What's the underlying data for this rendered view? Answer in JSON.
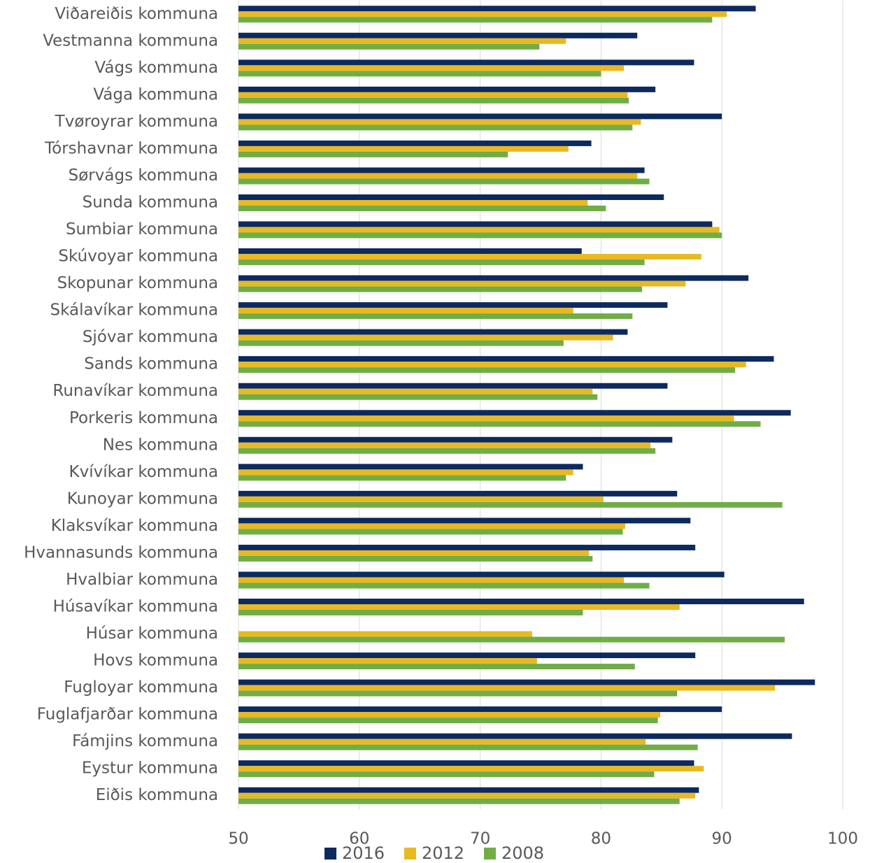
{
  "chart_data": {
    "type": "barh",
    "categories": [
      "Viðareiðis kommuna",
      "Vestmanna kommuna",
      "Vágs kommuna",
      "Vága kommuna",
      "Tvøroyrar kommuna",
      "Tórshavnar kommuna",
      "Sørvágs kommuna",
      "Sunda kommuna",
      "Sumbiar kommuna",
      "Skúvoyar kommuna",
      "Skopunar kommuna",
      "Skálavíkar kommuna",
      "Sjóvar kommuna",
      "Sands kommuna",
      "Runavíkar kommuna",
      "Porkeris kommuna",
      "Nes kommuna",
      "Kvívíkar kommuna",
      "Kunoyar kommuna",
      "Klaksvíkar kommuna",
      "Hvannasunds kommuna",
      "Hvalbiar kommuna",
      "Húsavíkar kommuna",
      "Húsar kommuna",
      "Hovs kommuna",
      "Fugloyar kommuna",
      "Fuglafjarðar kommuna",
      "Fámjins kommuna",
      "Eystur kommuna",
      "Eiðis kommuna"
    ],
    "series": [
      {
        "name": "2016",
        "color": "#0d2a5e",
        "values": [
          92.8,
          83.0,
          87.7,
          84.5,
          90.0,
          79.2,
          83.6,
          85.2,
          89.2,
          78.4,
          92.2,
          85.5,
          82.2,
          94.3,
          85.5,
          95.7,
          85.9,
          78.5,
          86.3,
          87.4,
          87.8,
          90.2,
          96.8,
          null,
          87.8,
          97.7,
          90.0,
          95.8,
          87.7,
          88.1
        ]
      },
      {
        "name": "2012",
        "color": "#e8b923",
        "values": [
          90.4,
          77.1,
          81.9,
          82.2,
          83.3,
          77.3,
          83.0,
          78.9,
          89.8,
          88.3,
          87.0,
          77.7,
          81.0,
          92.0,
          79.3,
          91.0,
          84.1,
          77.7,
          80.2,
          82.0,
          79.0,
          81.9,
          86.5,
          74.3,
          74.7,
          94.4,
          84.9,
          83.7,
          88.5,
          87.8
        ]
      },
      {
        "name": "2008",
        "color": "#70ad47",
        "values": [
          89.2,
          74.9,
          80.0,
          82.3,
          82.6,
          72.3,
          84.0,
          80.4,
          90.0,
          83.6,
          83.4,
          82.6,
          76.9,
          91.1,
          79.7,
          93.2,
          84.5,
          77.1,
          95.0,
          81.8,
          79.3,
          84.0,
          78.5,
          95.2,
          82.8,
          86.3,
          84.7,
          88.0,
          84.4,
          86.5
        ]
      }
    ],
    "xlim": [
      50,
      100
    ],
    "xticks": [
      50,
      60,
      70,
      80,
      90,
      100
    ],
    "grid": true,
    "legend": "bottom"
  }
}
